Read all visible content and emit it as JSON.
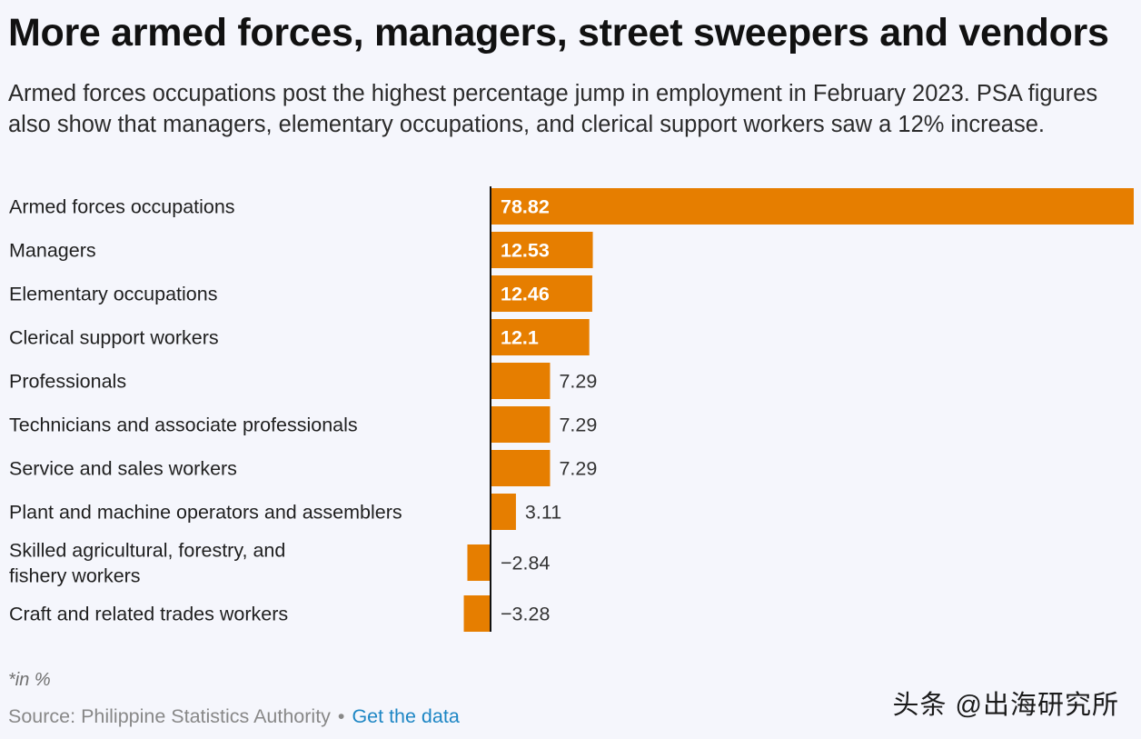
{
  "header": {
    "title": "More armed forces, managers, street sweepers and vendors",
    "subtitle": "Armed forces occupations post the highest percentage jump in employment in February 2023. PSA figures also show that managers, elementary occupations, and clerical support workers saw a 12% increase."
  },
  "chart_data": {
    "type": "bar",
    "orientation": "horizontal",
    "categories": [
      "Armed forces occupations",
      "Managers",
      "Elementary occupations",
      "Clerical support workers",
      "Professionals",
      "Technicians and associate professionals",
      "Service and sales workers",
      "Plant and machine operators and assemblers",
      "Skilled agricultural, forestry, and fishery workers",
      "Craft and related trades workers"
    ],
    "value_labels": [
      "78.82",
      "12.53",
      "12.46",
      "12.1",
      "7.29",
      "7.29",
      "7.29",
      "3.11",
      "−2.84",
      "−3.28"
    ],
    "values": [
      78.82,
      12.53,
      12.46,
      12.1,
      7.29,
      7.29,
      7.29,
      3.11,
      -2.84,
      -3.28
    ],
    "bar_color": "#e67e00",
    "inside_label_color": "#ffffff",
    "outside_label_color": "#333333",
    "xlim": [
      -3.28,
      78.82
    ],
    "grid": false,
    "legend": "none"
  },
  "footer": {
    "note": "*in %",
    "source": "Source: Philippine Statistics Authority",
    "separator": "•",
    "link": "Get the data",
    "watermark": "头条 @出海研究所"
  }
}
